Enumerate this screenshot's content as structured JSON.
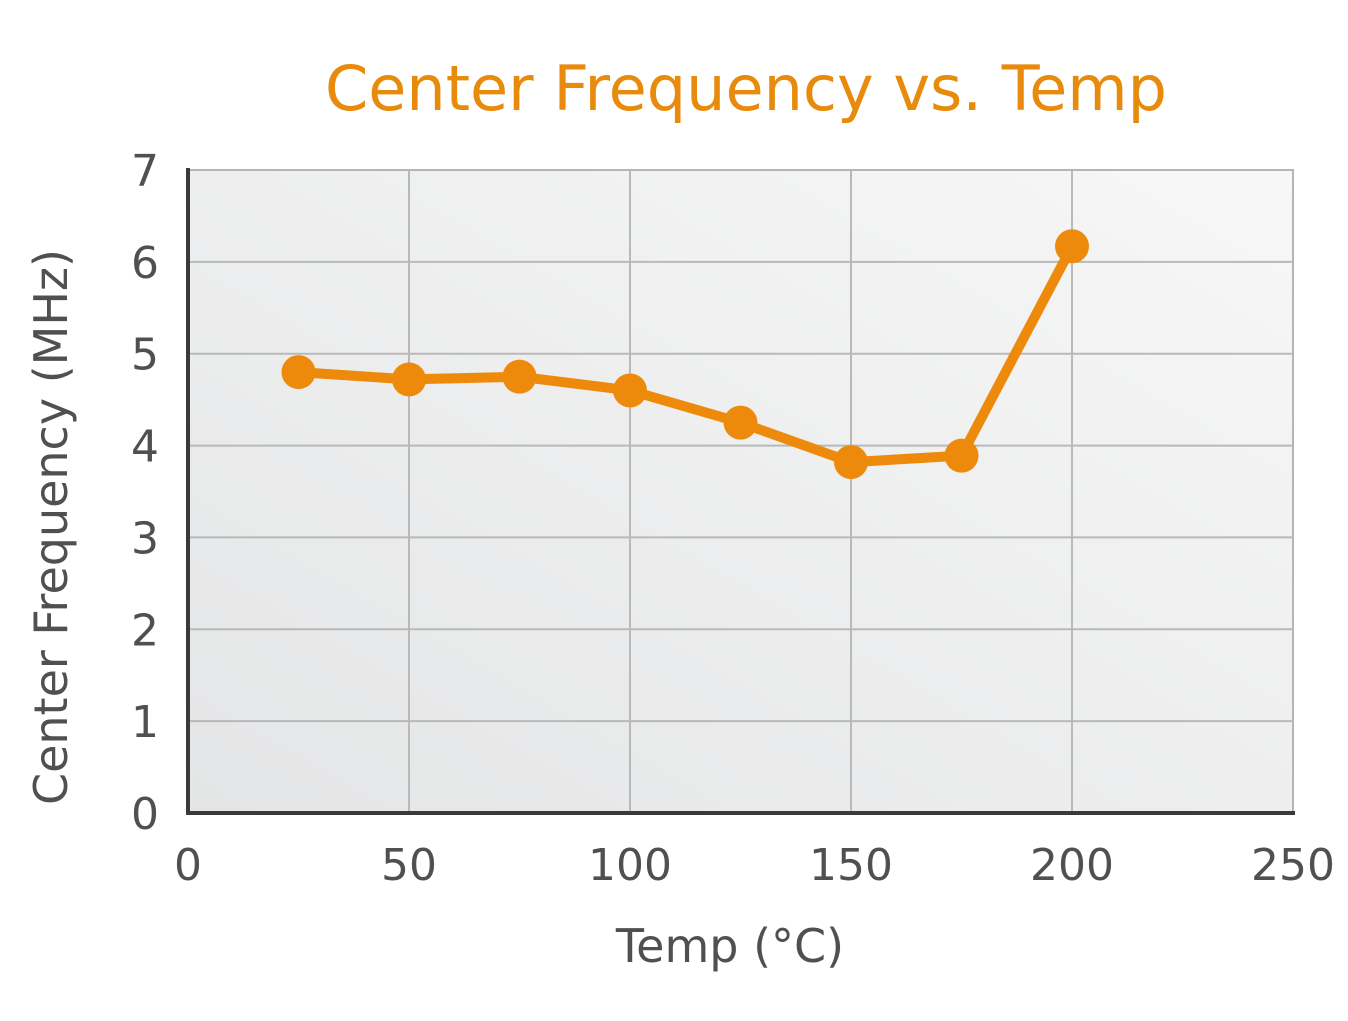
{
  "chart_data": {
    "type": "line",
    "title": "Center Frequency vs. Temp",
    "xlabel": "Temp (°C)",
    "ylabel": "Center Frequency  (MHz)",
    "xlim": [
      0,
      250
    ],
    "ylim": [
      0,
      7
    ],
    "xticks": [
      "0",
      "50",
      "100",
      "150",
      "200",
      "250"
    ],
    "yticks": [
      "0",
      "1",
      "2",
      "3",
      "4",
      "5",
      "6",
      "7"
    ],
    "grid": true,
    "series": [
      {
        "name": "Center Frequency",
        "color": "#EE8A0B",
        "x": [
          25,
          50,
          75,
          100,
          125,
          150,
          175,
          200
        ],
        "y": [
          4.8,
          4.72,
          4.75,
          4.6,
          4.25,
          3.82,
          3.89,
          6.17
        ]
      }
    ]
  }
}
